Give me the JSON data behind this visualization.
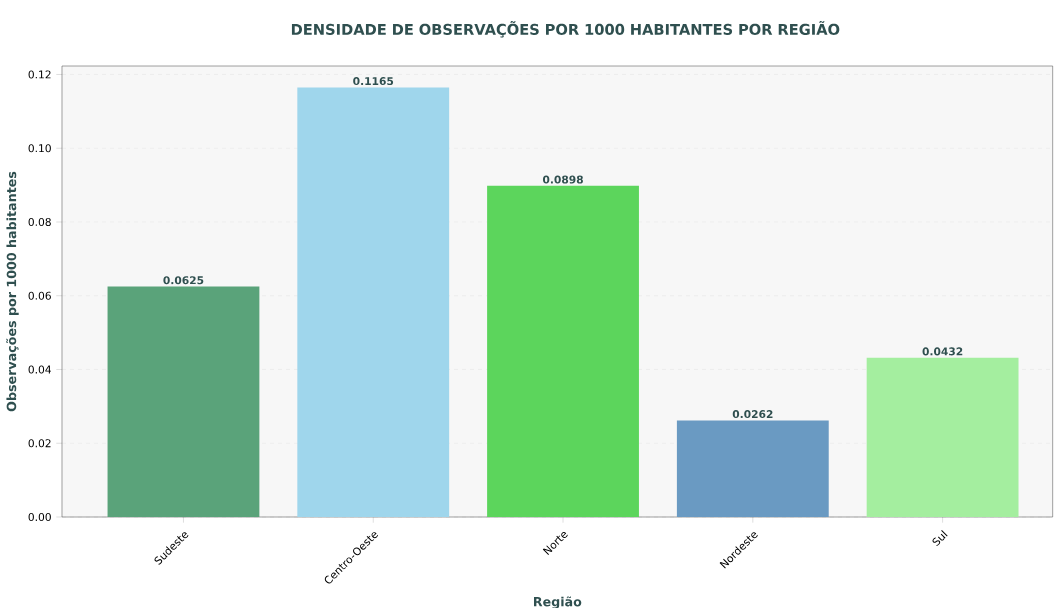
{
  "chart_data": {
    "type": "bar",
    "title": "DENSIDADE DE OBSERVAÇÕES POR 1000 HABITANTES POR REGIÃO",
    "xlabel": "Região",
    "ylabel": "Observações por 1000 habitantes",
    "categories": [
      "Sudeste",
      "Centro-Oeste",
      "Norte",
      "Nordeste",
      "Sul"
    ],
    "values": [
      0.0625,
      0.1165,
      0.0898,
      0.0262,
      0.0432
    ],
    "colors": [
      "#5aa37a",
      "#9fd6ec",
      "#5cd55c",
      "#6a9ac2",
      "#a4ee9f"
    ],
    "ylim": [
      0,
      0.1223
    ],
    "yticks": [
      {
        "value": 0,
        "label": "0.00"
      },
      {
        "value": 0.02,
        "label": "0.02"
      },
      {
        "value": 0.04,
        "label": "0.04"
      },
      {
        "value": 0.06,
        "label": "0.06"
      },
      {
        "value": 0.08,
        "label": "0.08"
      },
      {
        "value": 0.1,
        "label": "0.10"
      },
      {
        "value": 0.12,
        "label": "0.12"
      }
    ],
    "grid": "y",
    "data_labels": true
  }
}
